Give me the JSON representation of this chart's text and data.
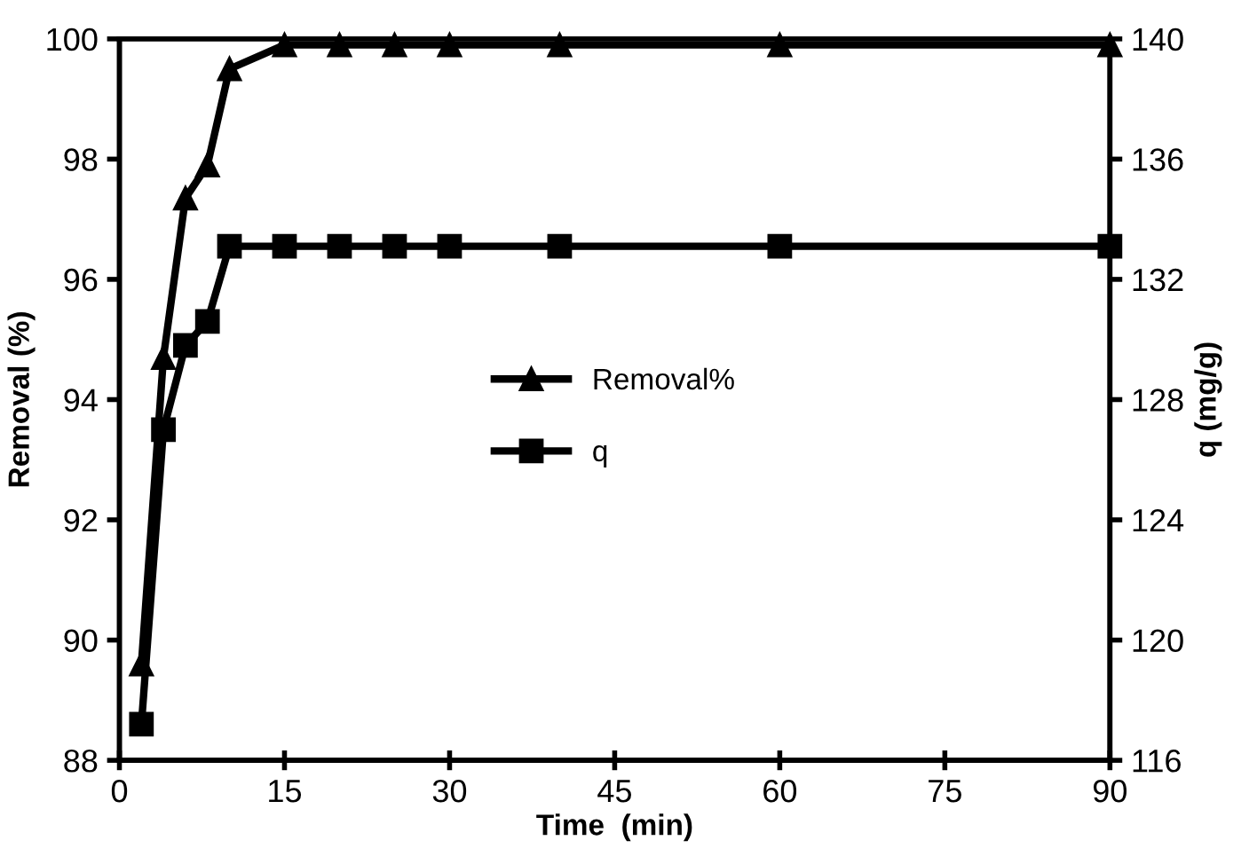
{
  "chart_data": {
    "type": "line",
    "xlabel": "Time  (min)",
    "ylabel": "Removal (%)",
    "y2label": "q (mg/g)",
    "xlim": [
      0,
      90
    ],
    "xticks": [
      0,
      15,
      30,
      45,
      60,
      75,
      90
    ],
    "ylim": [
      88,
      100
    ],
    "yticks": [
      88,
      90,
      92,
      94,
      96,
      98,
      100
    ],
    "y2lim": [
      116,
      140
    ],
    "y2ticks": [
      116,
      120,
      124,
      128,
      132,
      136,
      140
    ],
    "x": [
      2,
      4,
      6,
      8,
      10,
      15,
      20,
      25,
      30,
      40,
      60,
      90
    ],
    "series": [
      {
        "name": "Removal%",
        "color": "#000000",
        "marker": "triangle",
        "values": [
          89.6,
          94.7,
          97.35,
          97.9,
          99.5,
          99.9,
          99.9,
          99.9,
          99.9,
          99.9,
          99.9,
          99.9
        ]
      },
      {
        "name": "q",
        "color": "#000000",
        "marker": "square",
        "axis": "y2",
        "values": [
          117.2,
          127.0,
          129.8,
          130.6,
          133.1,
          133.1,
          133.1,
          133.1,
          133.1,
          133.1,
          133.1,
          133.1
        ]
      }
    ],
    "grid": false,
    "legend": "center",
    "line_style": "solid"
  }
}
